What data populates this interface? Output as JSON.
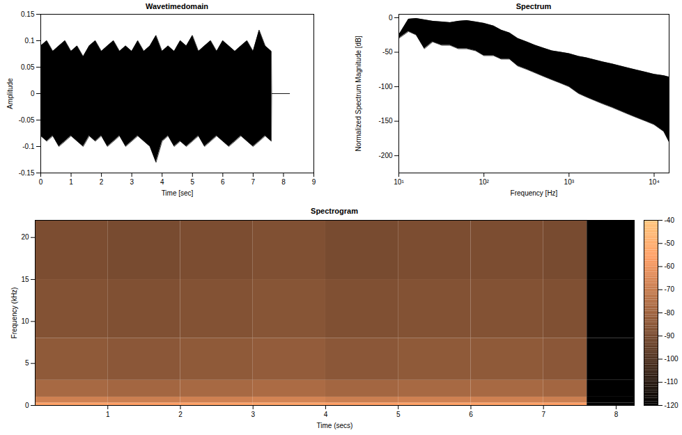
{
  "chart_data": [
    {
      "type": "band",
      "title": "Wavetimedomain",
      "xlabel": "Time [sec]",
      "ylabel": "Amplitude",
      "color": "#000000",
      "xlim": [
        0,
        9
      ],
      "ylim": [
        -0.15,
        0.15
      ],
      "xticks": [
        0,
        1,
        2,
        3,
        4,
        5,
        6,
        7,
        8,
        9
      ],
      "yticks": [
        -0.15,
        -0.1,
        -0.05,
        0,
        0.05,
        0.1,
        0.15
      ],
      "x": [
        0,
        0.2,
        0.4,
        0.6,
        0.8,
        1.0,
        1.2,
        1.4,
        1.6,
        1.8,
        2.0,
        2.2,
        2.4,
        2.6,
        2.8,
        3.0,
        3.2,
        3.4,
        3.6,
        3.8,
        4.0,
        4.2,
        4.4,
        4.6,
        4.8,
        5.0,
        5.2,
        5.4,
        5.6,
        5.8,
        6.0,
        6.2,
        6.4,
        6.6,
        6.8,
        7.0,
        7.2,
        7.4,
        7.6,
        7.61,
        8.2
      ],
      "upper": [
        0.09,
        0.1,
        0.08,
        0.09,
        0.1,
        0.08,
        0.09,
        0.07,
        0.09,
        0.1,
        0.08,
        0.09,
        0.1,
        0.08,
        0.09,
        0.08,
        0.1,
        0.08,
        0.09,
        0.11,
        0.08,
        0.09,
        0.08,
        0.1,
        0.09,
        0.11,
        0.08,
        0.09,
        0.1,
        0.08,
        0.1,
        0.09,
        0.08,
        0.09,
        0.1,
        0.08,
        0.12,
        0.09,
        0.08,
        0,
        0
      ],
      "lower": [
        -0.08,
        -0.09,
        -0.08,
        -0.1,
        -0.09,
        -0.08,
        -0.09,
        -0.1,
        -0.08,
        -0.09,
        -0.08,
        -0.1,
        -0.09,
        -0.08,
        -0.1,
        -0.09,
        -0.08,
        -0.09,
        -0.1,
        -0.13,
        -0.09,
        -0.08,
        -0.1,
        -0.09,
        -0.1,
        -0.09,
        -0.08,
        -0.1,
        -0.09,
        -0.08,
        -0.09,
        -0.1,
        -0.09,
        -0.08,
        -0.09,
        -0.1,
        -0.09,
        -0.08,
        -0.09,
        0,
        0
      ]
    },
    {
      "type": "band",
      "title": "Spectrum",
      "xlabel": "Frequency [Hz]",
      "ylabel": "Normalized Spectrum Magnitude [dB]",
      "color": "#000000",
      "log": "x",
      "xlim": [
        10,
        15000
      ],
      "ylim": [
        -225,
        5
      ],
      "xticks": [
        {
          "value": 10,
          "label": "10¹"
        },
        {
          "value": 100,
          "label": "10²"
        },
        {
          "value": 1000,
          "label": "10³"
        },
        {
          "value": 10000,
          "label": "10⁴"
        }
      ],
      "yticks": [
        -200,
        -150,
        -100,
        -50,
        0
      ],
      "x": [
        10,
        13,
        16,
        20,
        25,
        32,
        40,
        50,
        63,
        80,
        100,
        130,
        160,
        200,
        250,
        320,
        400,
        500,
        630,
        800,
        1000,
        1300,
        1600,
        2000,
        2500,
        3200,
        4000,
        5000,
        6300,
        8000,
        10000,
        13000,
        15000
      ],
      "upper": [
        -25,
        -2,
        -1,
        -3,
        -5,
        -6,
        -7,
        -5,
        -4,
        -6,
        -8,
        -12,
        -18,
        -22,
        -30,
        -35,
        -40,
        -44,
        -48,
        -50,
        -52,
        -56,
        -58,
        -61,
        -64,
        -67,
        -70,
        -73,
        -76,
        -79,
        -82,
        -84,
        -86
      ],
      "lower": [
        -30,
        -20,
        -25,
        -45,
        -35,
        -40,
        -40,
        -45,
        -45,
        -48,
        -55,
        -55,
        -60,
        -60,
        -70,
        -75,
        -80,
        -85,
        -90,
        -95,
        -100,
        -110,
        -115,
        -120,
        -125,
        -130,
        -135,
        -140,
        -145,
        -150,
        -155,
        -165,
        -180
      ]
    },
    {
      "type": "heatmap",
      "title": "Spectrogram",
      "xlabel": "Time (secs)",
      "ylabel": "Frequency (kHz)",
      "xlim": [
        0,
        8.25
      ],
      "ylim": [
        0,
        22.05
      ],
      "xticks": [
        1,
        2,
        3,
        4,
        5,
        6,
        7,
        8
      ],
      "yticks": [
        0,
        5,
        10,
        15,
        20
      ],
      "x_edges": [
        0,
        1,
        2,
        3,
        4,
        5,
        6,
        7,
        7.6,
        8.25
      ],
      "y_edges": [
        0,
        0.3,
        1,
        3,
        8,
        15,
        22.05
      ],
      "values": [
        [
          -55,
          -56,
          -55,
          -54,
          -56,
          -55,
          -55,
          -56,
          -120
        ],
        [
          -68,
          -69,
          -68,
          -67,
          -69,
          -68,
          -68,
          -69,
          -120
        ],
        [
          -78,
          -79,
          -78,
          -77,
          -79,
          -78,
          -78,
          -79,
          -120
        ],
        [
          -84,
          -85,
          -84,
          -83,
          -85,
          -84,
          -84,
          -85,
          -120
        ],
        [
          -87,
          -88,
          -87,
          -86,
          -88,
          -87,
          -87,
          -88,
          -120
        ],
        [
          -89,
          -90,
          -89,
          -88,
          -90,
          -89,
          -89,
          -90,
          -120
        ]
      ],
      "colorbar": {
        "lim": [
          -120,
          -40
        ],
        "ticks": [
          -120,
          -110,
          -100,
          -90,
          -80,
          -70,
          -60,
          -50,
          -40
        ]
      }
    }
  ]
}
